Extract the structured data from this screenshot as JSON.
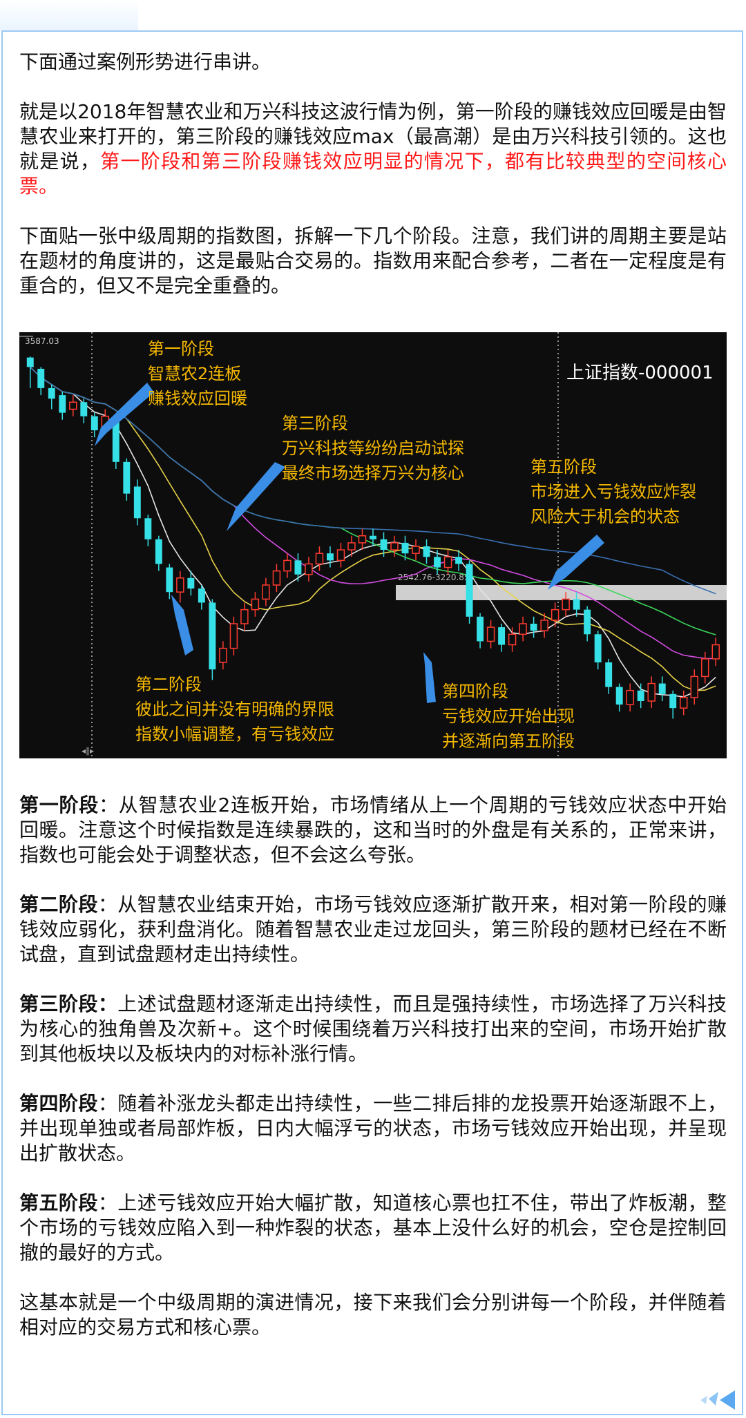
{
  "intro": "下面通过案例形势进行串讲。",
  "case_paragraph": {
    "normal": "就是以2018年智慧农业和万兴科技这波行情为例，第一阶段的赚钱效应回暖是由智慧农业来打开的，第三阶段的赚钱效应max（最高潮）是由万兴科技引领的。这也就是说，",
    "highlight": "第一阶段和第三阶段赚钱效应明显的情况下，都有比较典型的空间核心票。"
  },
  "chart_intro": "下面贴一张中级周期的指数图，拆解一下几个阶段。注意，我们讲的周期主要是站在题材的角度讲的，这是最贴合交易的。指数用来配合参考，二者在一定程度是有重合的，但又不是完全重叠的。",
  "chart_data": {
    "type": "candlestick",
    "title": "上证指数-000001",
    "high_label": "3587.03",
    "range_label": "2542.76-3220.85",
    "annotations": [
      {
        "lines": [
          "第一阶段",
          "智慧农2连板",
          "赚钱效应回暖"
        ]
      },
      {
        "lines": [
          "第二阶段",
          "彼此之间并没有明确的界限",
          "指数小幅调整，有亏钱效应"
        ]
      },
      {
        "lines": [
          "第三阶段",
          "万兴科技等纷纷启动试探",
          "最终市场选择万兴为核心"
        ]
      },
      {
        "lines": [
          "第四阶段",
          "亏钱效应开始出现",
          "并逐渐向第五阶段"
        ]
      },
      {
        "lines": [
          "第五阶段",
          "市场进入亏钱效应炸裂",
          "风险大于机会的状态"
        ]
      }
    ],
    "candles": [
      [
        3587,
        3560,
        3590,
        3500
      ],
      [
        3555,
        3500,
        3560,
        3480
      ],
      [
        3500,
        3470,
        3510,
        3440
      ],
      [
        3480,
        3430,
        3490,
        3410
      ],
      [
        3440,
        3460,
        3480,
        3420
      ],
      [
        3460,
        3420,
        3470,
        3400
      ],
      [
        3420,
        3380,
        3430,
        3360
      ],
      [
        3390,
        3420,
        3440,
        3370
      ],
      [
        3410,
        3290,
        3420,
        3270
      ],
      [
        3290,
        3200,
        3300,
        3180
      ],
      [
        3220,
        3130,
        3240,
        3110
      ],
      [
        3130,
        3070,
        3140,
        3050
      ],
      [
        3070,
        3000,
        3080,
        2980
      ],
      [
        2990,
        2920,
        3000,
        2900
      ],
      [
        2920,
        2960,
        2980,
        2890
      ],
      [
        2960,
        2930,
        2980,
        2910
      ],
      [
        2930,
        2890,
        2940,
        2870
      ],
      [
        2890,
        2700,
        2900,
        2670
      ],
      [
        2720,
        2760,
        2780,
        2700
      ],
      [
        2760,
        2830,
        2850,
        2740
      ],
      [
        2830,
        2870,
        2890,
        2810
      ],
      [
        2870,
        2900,
        2920,
        2850
      ],
      [
        2900,
        2940,
        2960,
        2880
      ],
      [
        2940,
        2980,
        3000,
        2920
      ],
      [
        2980,
        3010,
        3030,
        2960
      ],
      [
        3010,
        2970,
        3030,
        2950
      ],
      [
        2970,
        3000,
        3020,
        2950
      ],
      [
        3000,
        3030,
        3050,
        2980
      ],
      [
        3030,
        3010,
        3050,
        2990
      ],
      [
        3010,
        3040,
        3060,
        2990
      ],
      [
        3040,
        3060,
        3080,
        3020
      ],
      [
        3060,
        3080,
        3100,
        3040
      ],
      [
        3080,
        3070,
        3100,
        3050
      ],
      [
        3070,
        3040,
        3090,
        3020
      ],
      [
        3040,
        3060,
        3080,
        3020
      ],
      [
        3060,
        3030,
        3080,
        3010
      ],
      [
        3030,
        3050,
        3070,
        3010
      ],
      [
        3050,
        3020,
        3070,
        3000
      ],
      [
        3020,
        2990,
        3040,
        2970
      ],
      [
        2990,
        3020,
        3040,
        2970
      ],
      [
        3020,
        3000,
        3040,
        2980
      ],
      [
        3000,
        2850,
        3010,
        2830
      ],
      [
        2850,
        2780,
        2860,
        2760
      ],
      [
        2780,
        2820,
        2840,
        2760
      ],
      [
        2820,
        2770,
        2830,
        2750
      ],
      [
        2770,
        2800,
        2820,
        2750
      ],
      [
        2800,
        2830,
        2850,
        2780
      ],
      [
        2830,
        2810,
        2850,
        2790
      ],
      [
        2810,
        2840,
        2860,
        2790
      ],
      [
        2840,
        2870,
        2890,
        2820
      ],
      [
        2870,
        2900,
        2920,
        2850
      ],
      [
        2900,
        2870,
        2920,
        2850
      ],
      [
        2870,
        2800,
        2880,
        2780
      ],
      [
        2800,
        2720,
        2810,
        2700
      ],
      [
        2720,
        2650,
        2730,
        2630
      ],
      [
        2650,
        2600,
        2660,
        2580
      ],
      [
        2600,
        2640,
        2660,
        2580
      ],
      [
        2640,
        2610,
        2660,
        2590
      ],
      [
        2610,
        2660,
        2680,
        2590
      ],
      [
        2660,
        2630,
        2680,
        2610
      ],
      [
        2630,
        2590,
        2640,
        2560
      ],
      [
        2590,
        2620,
        2640,
        2570
      ],
      [
        2620,
        2680,
        2700,
        2600
      ],
      [
        2680,
        2730,
        2750,
        2660
      ],
      [
        2730,
        2770,
        2790,
        2710
      ]
    ]
  },
  "sections": [
    {
      "label": "第一阶段",
      "sep": "：",
      "text": "从智慧农业2连板开始，市场情绪从上一个周期的亏钱效应状态中开始回暖。注意这个时候指数是连续暴跌的，这和当时的外盘是有关系的，正常来讲，指数也可能会处于调整状态，但不会这么夸张。"
    },
    {
      "label": "第二阶段",
      "sep": "：",
      "text": "从智慧农业结束开始，市场亏钱效应逐渐扩散开来，相对第一阶段的赚钱效应弱化，获利盘消化。随着智慧农业走过龙回头，第三阶段的题材已经在不断试盘，直到试盘题材走出持续性。"
    },
    {
      "label": "第三阶段：",
      "sep": "",
      "text": "上述试盘题材逐渐走出持续性，而且是强持续性，市场选择了万兴科技为核心的独角兽及次新+。这个时候围绕着万兴科技打出来的空间，市场开始扩散到其他板块以及板块内的对标补涨行情。"
    },
    {
      "label": "第四阶段",
      "sep": "：",
      "text": "随着补涨龙头都走出持续性，一些二排后排的龙投票开始逐渐跟不上，并出现单独或者局部炸板，日内大幅浮亏的状态，市场亏钱效应开始出现，并呈现出扩散状态。"
    },
    {
      "label": "第五阶段",
      "sep": "：",
      "text": "上述亏钱效应开始大幅扩散，知道核心票也扛不住，带出了炸板潮，整个市场的亏钱效应陷入到一种炸裂的状态，基本上没什么好的机会，空仓是控制回撤的最好的方式。"
    }
  ],
  "conclusion": "这基本就是一个中级周期的演进情况，接下来我们会分别讲每一个阶段，并伴随着相对应的交易方式和核心票。",
  "colors": {
    "text": "#111111",
    "highlight": "#ff1a1a",
    "frame": "#9cc9f3",
    "annotation": "#f5b800",
    "arrow": "#3a8ee6"
  }
}
